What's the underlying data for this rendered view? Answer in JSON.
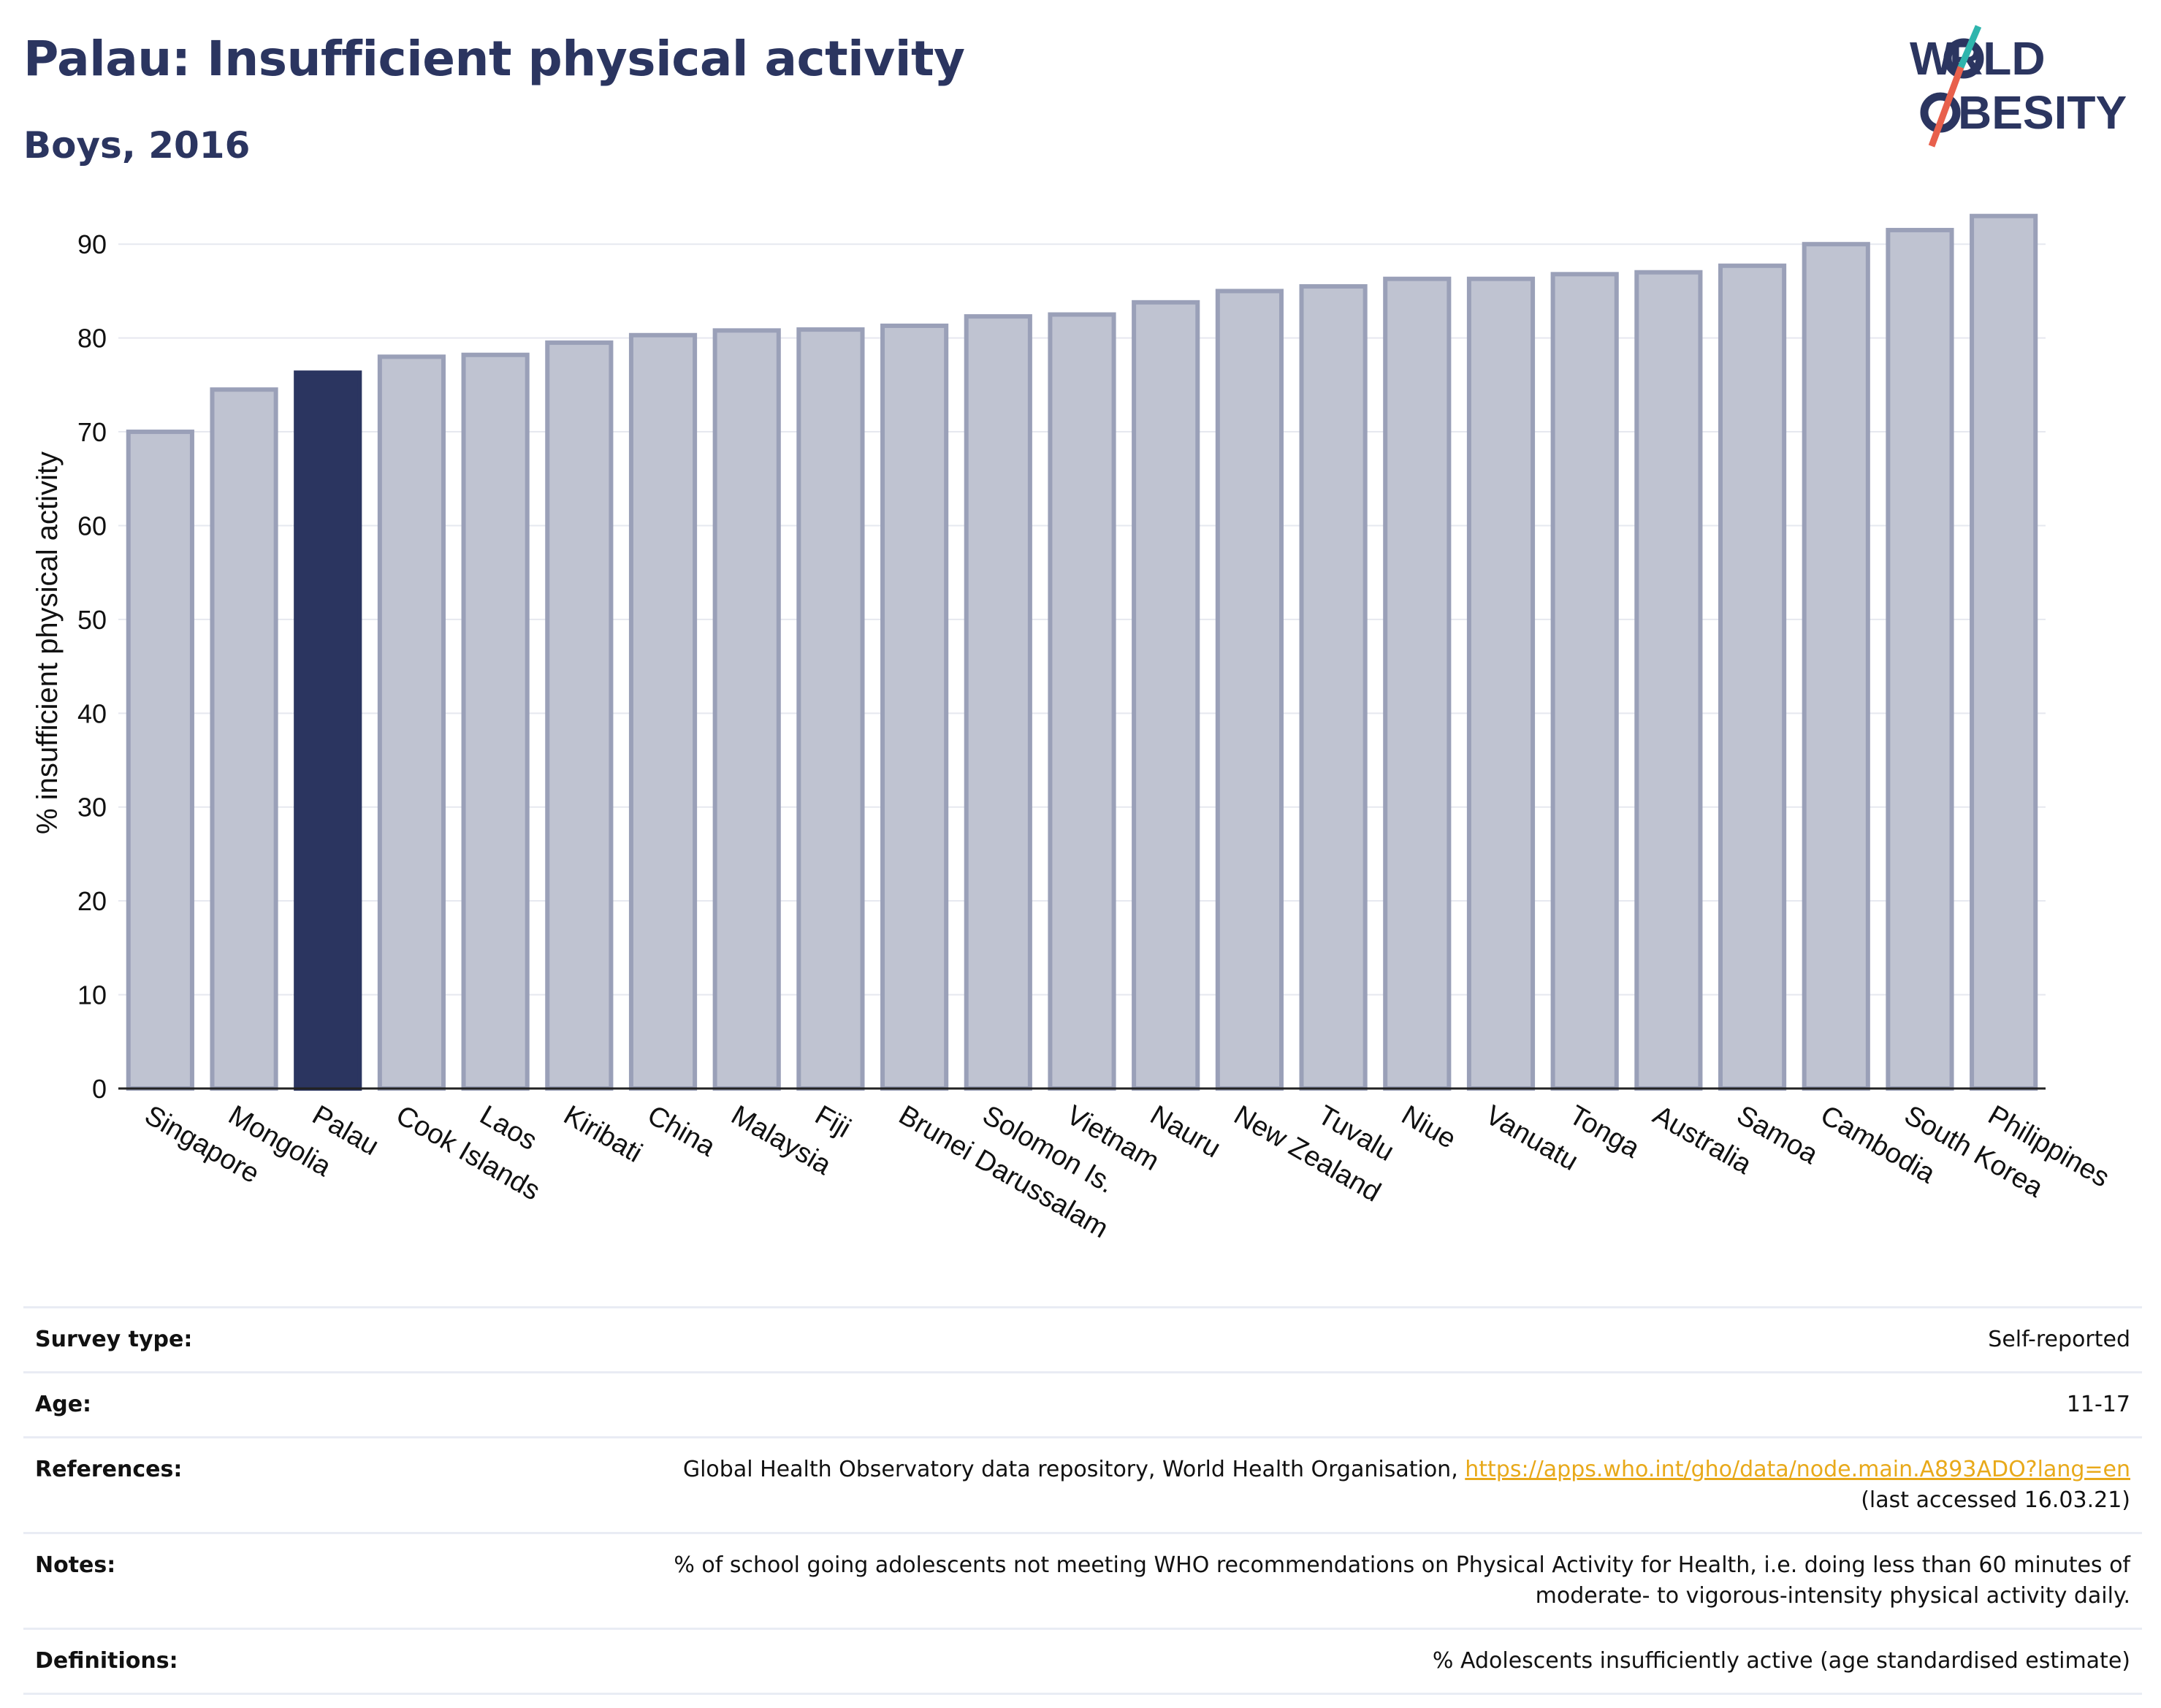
{
  "header": {
    "title": "Palau: Insufficient physical activity",
    "subtitle": "Boys, 2016"
  },
  "logo": {
    "line1": "WØRLD",
    "line2": "ØBESITY"
  },
  "colors": {
    "brand_navy": "#2b3560",
    "bar_default": "#bfc3d1",
    "bar_border": "#9aa0b8",
    "bar_highlight": "#2b3560",
    "logo_teal": "#2fb5ad",
    "logo_coral": "#e8604c",
    "link": "#e8a91a"
  },
  "chart_data": {
    "type": "bar",
    "title": "Palau: Insufficient physical activity",
    "subtitle": "Boys, 2016",
    "xlabel": "",
    "ylabel": "% insufficient physical activity",
    "ylim": [
      0,
      95
    ],
    "yticks": [
      0,
      10,
      20,
      30,
      40,
      50,
      60,
      70,
      80,
      90
    ],
    "grid": true,
    "highlight": "Palau",
    "categories": [
      "Singapore",
      "Mongolia",
      "Palau",
      "Cook Islands",
      "Laos",
      "Kiribati",
      "China",
      "Malaysia",
      "Fiji",
      "Brunei Darussalam",
      "Solomon Is.",
      "Vietnam",
      "Nauru",
      "New Zealand",
      "Tuvalu",
      "Niue",
      "Vanuatu",
      "Tonga",
      "Australia",
      "Samoa",
      "Cambodia",
      "South Korea",
      "Philippines"
    ],
    "values": [
      70.0,
      74.5,
      76.3,
      78.0,
      78.2,
      79.5,
      80.3,
      80.8,
      80.9,
      81.3,
      82.3,
      82.5,
      83.8,
      85.0,
      85.5,
      86.3,
      86.3,
      86.8,
      87.0,
      87.7,
      90.0,
      91.5,
      93.0
    ]
  },
  "meta": {
    "survey_type": {
      "label": "Survey type:",
      "value": "Self-reported"
    },
    "age": {
      "label": "Age:",
      "value": "11-17"
    },
    "references": {
      "label": "References:",
      "text": "Global Health Observatory data repository, World Health Organisation, ",
      "link": "https://apps.who.int/gho/data/node.main.A893ADO?lang=en",
      "accessed": "(last accessed 16.03.21)"
    },
    "notes": {
      "label": "Notes:",
      "line1": "% of school going adolescents not meeting WHO recommendations on Physical Activity for Health, i.e. doing less than 60 minutes of",
      "line2": "moderate- to vigorous-intensity physical activity daily."
    },
    "definitions": {
      "label": "Definitions:",
      "value": "% Adolescents insufficiently active (age standardised estimate)"
    }
  }
}
